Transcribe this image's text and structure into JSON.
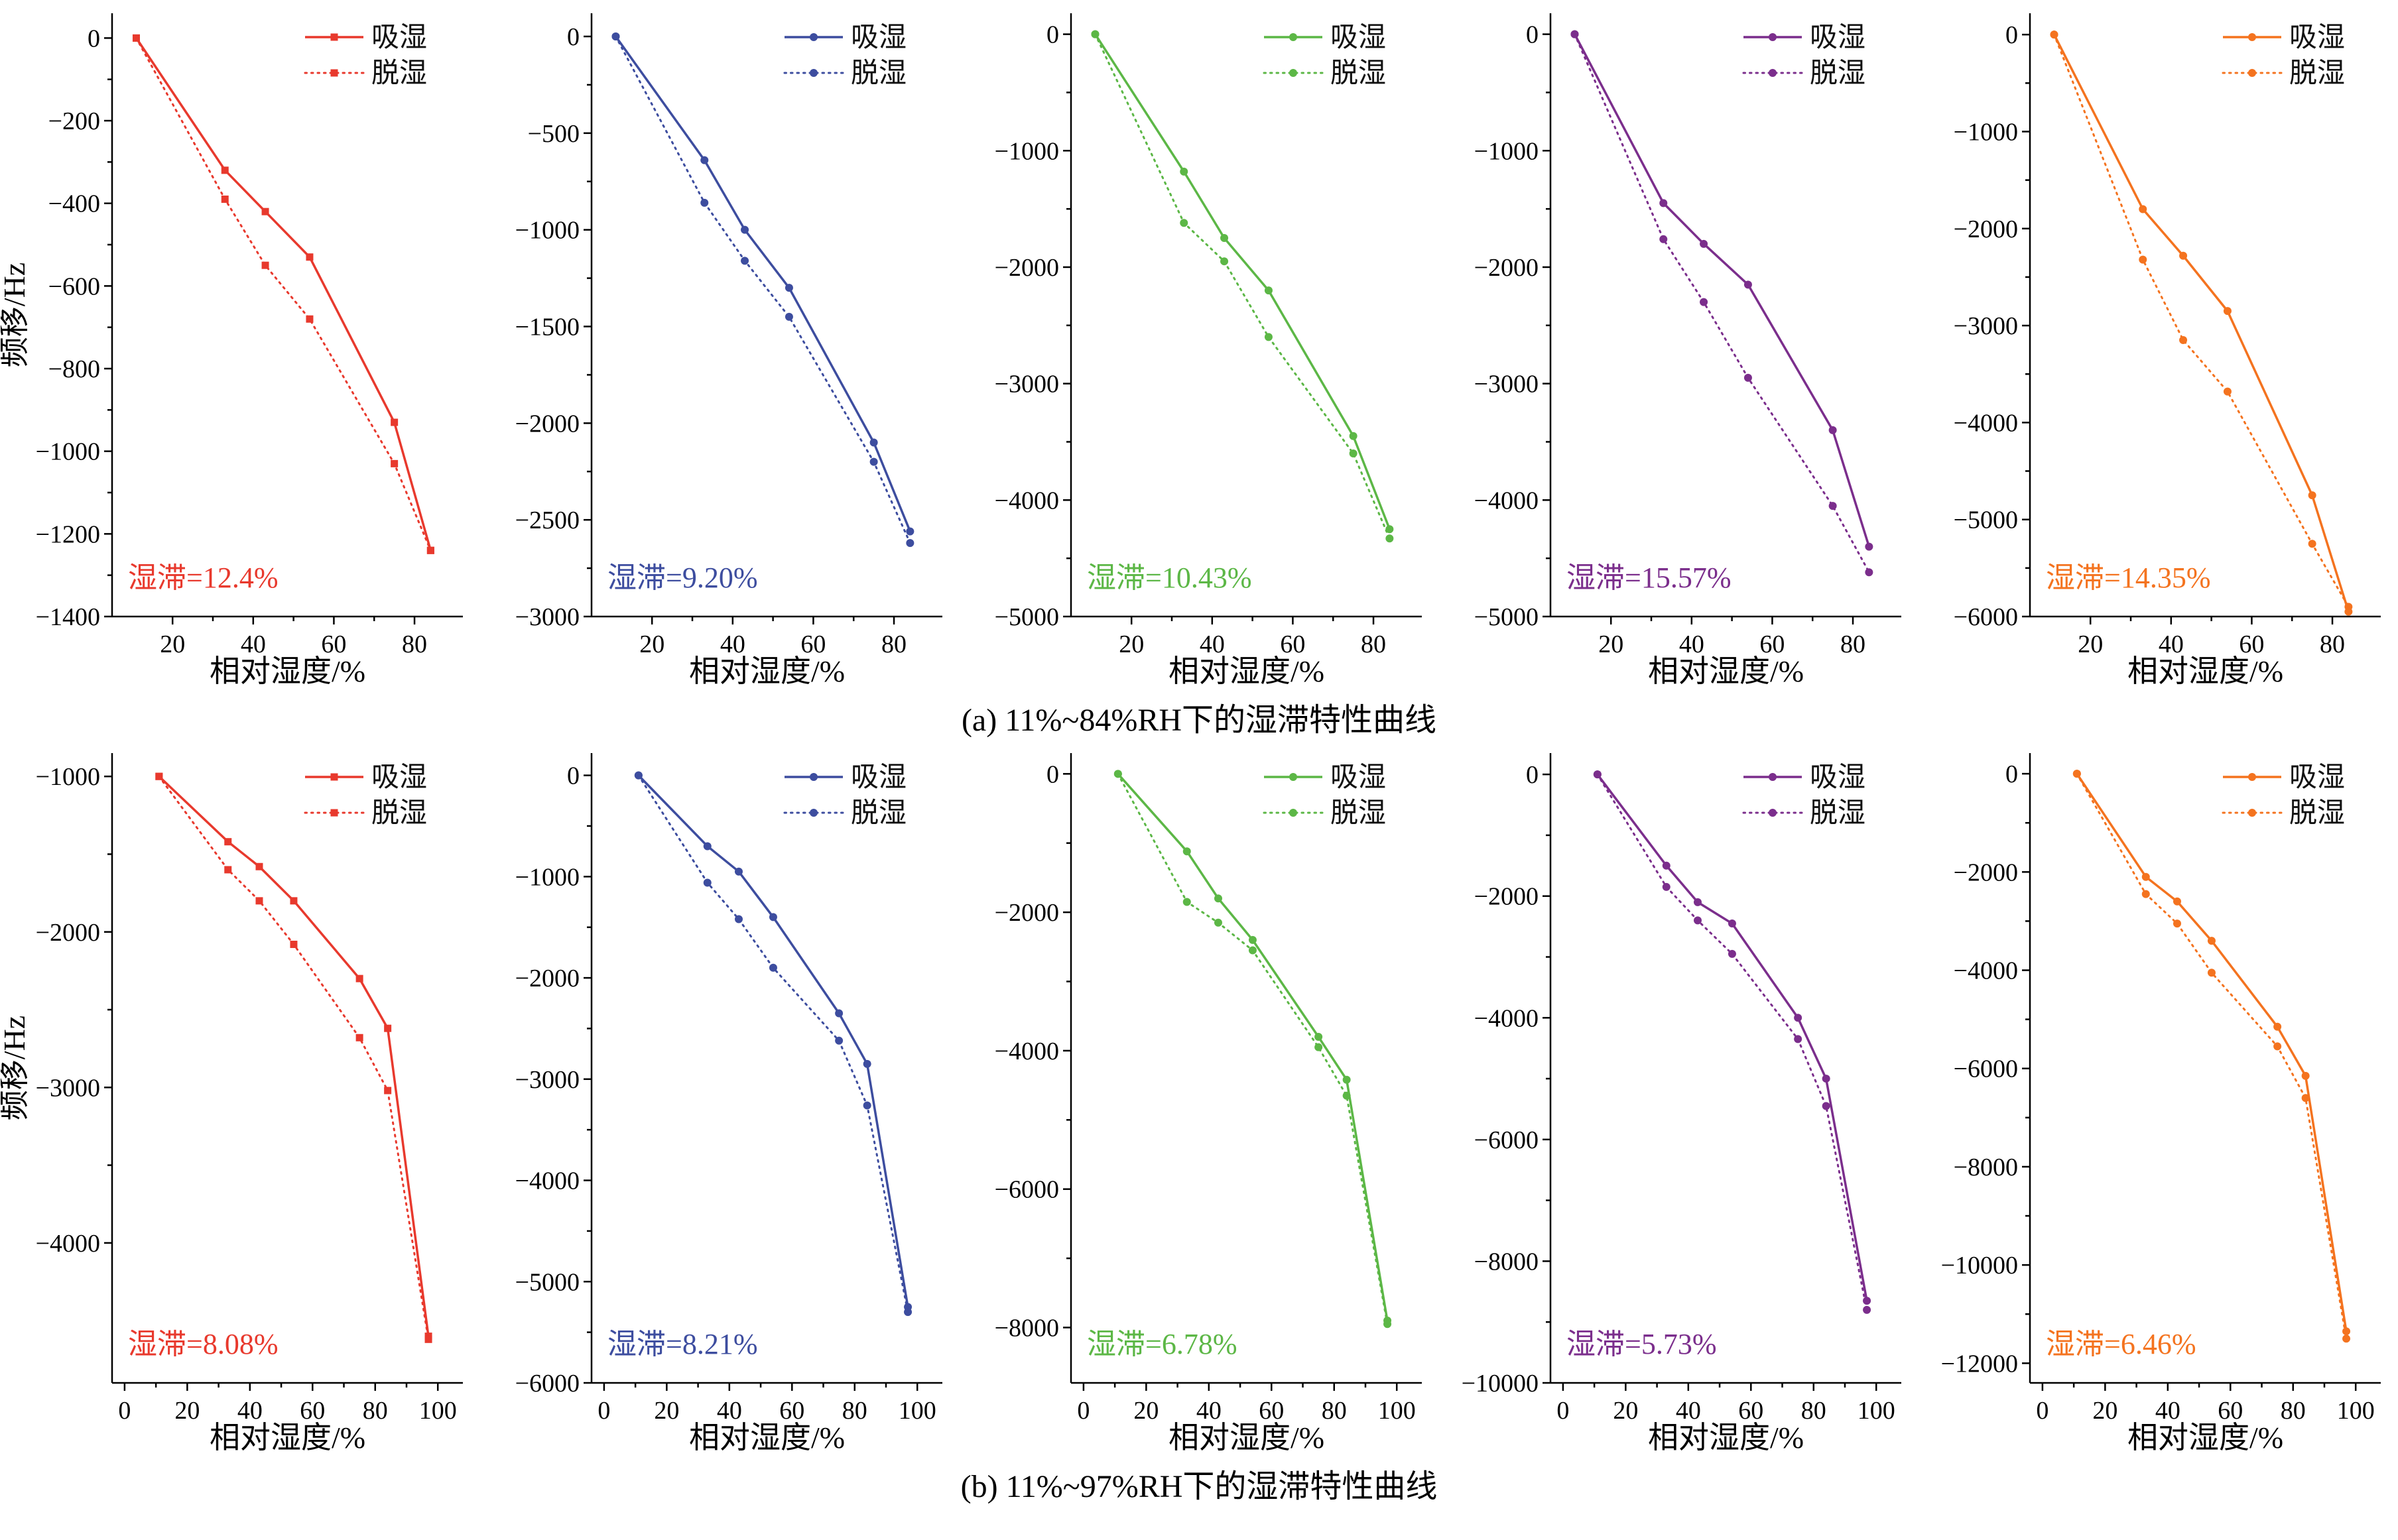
{
  "figure": {
    "caption_a": "(a) 11%~84%RH下的湿滞特性曲线",
    "caption_b": "(b) 11%~97%RH下的湿滞特性曲线",
    "legend": {
      "absorb": "吸湿",
      "desorb": "脱湿"
    },
    "ylabel": "频移/Hz",
    "xlabel": "相对湿度/%",
    "colors": {
      "red": "#e8392d",
      "blue": "#3d4d9f",
      "green": "#5cb746",
      "purple": "#7b2e8c",
      "orange": "#f4731f"
    }
  },
  "chart_data": [
    {
      "type": "line",
      "row": "a",
      "color": "#e8392d",
      "marker": "square",
      "xlabel": "相对湿度/%",
      "ylabel": "频移/Hz",
      "xlim": [
        5,
        92
      ],
      "xticks": [
        20,
        40,
        60,
        80
      ],
      "ylim": [
        -1400,
        60
      ],
      "yticks": [
        0,
        -200,
        -400,
        -600,
        -800,
        -1000,
        -1200,
        -1400
      ],
      "annotation": "湿滞=12.4%",
      "series": [
        {
          "name": "吸湿",
          "style": "solid",
          "x": [
            11,
            33,
            43,
            54,
            75,
            84
          ],
          "y": [
            0,
            -320,
            -420,
            -530,
            -930,
            -1240
          ]
        },
        {
          "name": "脱湿",
          "style": "dotted",
          "x": [
            11,
            33,
            43,
            54,
            75,
            84
          ],
          "y": [
            0,
            -390,
            -550,
            -680,
            -1030,
            -1240
          ]
        }
      ]
    },
    {
      "type": "line",
      "row": "a",
      "color": "#3d4d9f",
      "marker": "circle",
      "xlabel": "相对湿度/%",
      "ylabel": "",
      "xlim": [
        5,
        92
      ],
      "xticks": [
        20,
        40,
        60,
        80
      ],
      "ylim": [
        -3000,
        120
      ],
      "yticks": [
        0,
        -500,
        -1000,
        -1500,
        -2000,
        -2500,
        -3000
      ],
      "annotation": "湿滞=9.20%",
      "series": [
        {
          "name": "吸湿",
          "style": "solid",
          "x": [
            11,
            33,
            43,
            54,
            75,
            84
          ],
          "y": [
            0,
            -640,
            -1000,
            -1300,
            -2100,
            -2560
          ]
        },
        {
          "name": "脱湿",
          "style": "dotted",
          "x": [
            11,
            33,
            43,
            54,
            75,
            84
          ],
          "y": [
            0,
            -860,
            -1160,
            -1450,
            -2200,
            -2620
          ]
        }
      ]
    },
    {
      "type": "line",
      "row": "a",
      "color": "#5cb746",
      "marker": "circle",
      "xlabel": "相对湿度/%",
      "ylabel": "",
      "xlim": [
        5,
        92
      ],
      "xticks": [
        20,
        40,
        60,
        80
      ],
      "ylim": [
        -5000,
        180
      ],
      "yticks": [
        0,
        -1000,
        -2000,
        -3000,
        -4000,
        -5000
      ],
      "annotation": "湿滞=10.43%",
      "series": [
        {
          "name": "吸湿",
          "style": "solid",
          "x": [
            11,
            33,
            43,
            54,
            75,
            84
          ],
          "y": [
            0,
            -1180,
            -1750,
            -2200,
            -3450,
            -4250
          ]
        },
        {
          "name": "脱湿",
          "style": "dotted",
          "x": [
            11,
            33,
            43,
            54,
            75,
            84
          ],
          "y": [
            0,
            -1620,
            -1950,
            -2600,
            -3600,
            -4330
          ]
        }
      ]
    },
    {
      "type": "line",
      "row": "a",
      "color": "#7b2e8c",
      "marker": "circle",
      "xlabel": "相对湿度/%",
      "ylabel": "",
      "xlim": [
        5,
        92
      ],
      "xticks": [
        20,
        40,
        60,
        80
      ],
      "ylim": [
        -5000,
        180
      ],
      "yticks": [
        0,
        -1000,
        -2000,
        -3000,
        -4000,
        -5000
      ],
      "annotation": "湿滞=15.57%",
      "series": [
        {
          "name": "吸湿",
          "style": "solid",
          "x": [
            11,
            33,
            43,
            54,
            75,
            84
          ],
          "y": [
            0,
            -1450,
            -1800,
            -2150,
            -3400,
            -4400
          ]
        },
        {
          "name": "脱湿",
          "style": "dotted",
          "x": [
            11,
            33,
            43,
            54,
            75,
            84
          ],
          "y": [
            0,
            -1760,
            -2300,
            -2950,
            -4050,
            -4620
          ]
        }
      ]
    },
    {
      "type": "line",
      "row": "a",
      "color": "#f4731f",
      "marker": "circle",
      "xlabel": "相对湿度/%",
      "ylabel": "",
      "xlim": [
        5,
        92
      ],
      "xticks": [
        20,
        40,
        60,
        80
      ],
      "ylim": [
        -6000,
        220
      ],
      "yticks": [
        0,
        -1000,
        -2000,
        -3000,
        -4000,
        -5000,
        -6000
      ],
      "annotation": "湿滞=14.35%",
      "series": [
        {
          "name": "吸湿",
          "style": "solid",
          "x": [
            11,
            33,
            43,
            54,
            75,
            84
          ],
          "y": [
            0,
            -1800,
            -2280,
            -2850,
            -4750,
            -5950
          ]
        },
        {
          "name": "脱湿",
          "style": "dotted",
          "x": [
            11,
            33,
            43,
            54,
            75,
            84
          ],
          "y": [
            0,
            -2320,
            -3150,
            -3680,
            -5250,
            -5900
          ]
        }
      ]
    },
    {
      "type": "line",
      "row": "b",
      "color": "#e8392d",
      "marker": "square",
      "xlabel": "相对湿度/%",
      "ylabel": "频移/Hz",
      "xlim": [
        -4,
        108
      ],
      "xticks": [
        0,
        20,
        40,
        60,
        80,
        100
      ],
      "ylim": [
        -4900,
        -850
      ],
      "yticks": [
        -1000,
        -2000,
        -3000,
        -4000
      ],
      "annotation": "湿滞=8.08%",
      "series": [
        {
          "name": "吸湿",
          "style": "solid",
          "x": [
            11,
            33,
            43,
            54,
            75,
            84,
            97
          ],
          "y": [
            -1000,
            -1420,
            -1580,
            -1800,
            -2300,
            -2620,
            -4600
          ]
        },
        {
          "name": "脱湿",
          "style": "dotted",
          "x": [
            11,
            33,
            43,
            54,
            75,
            84,
            97
          ],
          "y": [
            -1000,
            -1600,
            -1800,
            -2080,
            -2680,
            -3020,
            -4620
          ]
        }
      ]
    },
    {
      "type": "line",
      "row": "b",
      "color": "#3d4d9f",
      "marker": "circle",
      "xlabel": "相对湿度/%",
      "ylabel": "",
      "xlim": [
        -4,
        108
      ],
      "xticks": [
        0,
        20,
        40,
        60,
        80,
        100
      ],
      "ylim": [
        -6000,
        220
      ],
      "yticks": [
        0,
        -1000,
        -2000,
        -3000,
        -4000,
        -5000,
        -6000
      ],
      "annotation": "湿滞=8.21%",
      "series": [
        {
          "name": "吸湿",
          "style": "solid",
          "x": [
            11,
            33,
            43,
            54,
            75,
            84,
            97
          ],
          "y": [
            0,
            -700,
            -950,
            -1400,
            -2350,
            -2850,
            -5250
          ]
        },
        {
          "name": "脱湿",
          "style": "dotted",
          "x": [
            11,
            33,
            43,
            54,
            75,
            84,
            97
          ],
          "y": [
            0,
            -1060,
            -1420,
            -1900,
            -2620,
            -3260,
            -5300
          ]
        }
      ]
    },
    {
      "type": "line",
      "row": "b",
      "color": "#5cb746",
      "marker": "circle",
      "xlabel": "相对湿度/%",
      "ylabel": "",
      "xlim": [
        -4,
        108
      ],
      "xticks": [
        0,
        20,
        40,
        60,
        80,
        100
      ],
      "ylim": [
        -8800,
        300
      ],
      "yticks": [
        0,
        -2000,
        -4000,
        -6000,
        -8000
      ],
      "annotation": "湿滞=6.78%",
      "series": [
        {
          "name": "吸湿",
          "style": "solid",
          "x": [
            11,
            33,
            43,
            54,
            75,
            84,
            97
          ],
          "y": [
            0,
            -1120,
            -1800,
            -2400,
            -3800,
            -4420,
            -7900
          ]
        },
        {
          "name": "脱湿",
          "style": "dotted",
          "x": [
            11,
            33,
            43,
            54,
            75,
            84,
            97
          ],
          "y": [
            0,
            -1850,
            -2150,
            -2550,
            -3950,
            -4650,
            -7950
          ]
        }
      ]
    },
    {
      "type": "line",
      "row": "b",
      "color": "#7b2e8c",
      "marker": "circle",
      "xlabel": "相对湿度/%",
      "ylabel": "",
      "xlim": [
        -4,
        108
      ],
      "xticks": [
        0,
        20,
        40,
        60,
        80,
        100
      ],
      "ylim": [
        -10000,
        350
      ],
      "yticks": [
        0,
        -2000,
        -4000,
        -6000,
        -8000,
        -10000
      ],
      "annotation": "湿滞=5.73%",
      "series": [
        {
          "name": "吸湿",
          "style": "solid",
          "x": [
            11,
            33,
            43,
            54,
            75,
            84,
            97
          ],
          "y": [
            0,
            -1500,
            -2100,
            -2450,
            -4000,
            -5000,
            -8650
          ]
        },
        {
          "name": "脱湿",
          "style": "dotted",
          "x": [
            11,
            33,
            43,
            54,
            75,
            84,
            97
          ],
          "y": [
            0,
            -1850,
            -2400,
            -2950,
            -4350,
            -5450,
            -8800
          ]
        }
      ]
    },
    {
      "type": "line",
      "row": "b",
      "color": "#f4731f",
      "marker": "circle",
      "xlabel": "相对湿度/%",
      "ylabel": "",
      "xlim": [
        -4,
        108
      ],
      "xticks": [
        0,
        20,
        40,
        60,
        80,
        100
      ],
      "ylim": [
        -12400,
        420
      ],
      "yticks": [
        0,
        -2000,
        -4000,
        -6000,
        -8000,
        -10000,
        -12000
      ],
      "annotation": "湿滞=6.46%",
      "series": [
        {
          "name": "吸湿",
          "style": "solid",
          "x": [
            11,
            33,
            43,
            54,
            75,
            84,
            97
          ],
          "y": [
            0,
            -2100,
            -2600,
            -3400,
            -5150,
            -6150,
            -11350
          ]
        },
        {
          "name": "脱湿",
          "style": "dotted",
          "x": [
            11,
            33,
            43,
            54,
            75,
            84,
            97
          ],
          "y": [
            0,
            -2450,
            -3050,
            -4050,
            -5550,
            -6600,
            -11500
          ]
        }
      ]
    }
  ]
}
